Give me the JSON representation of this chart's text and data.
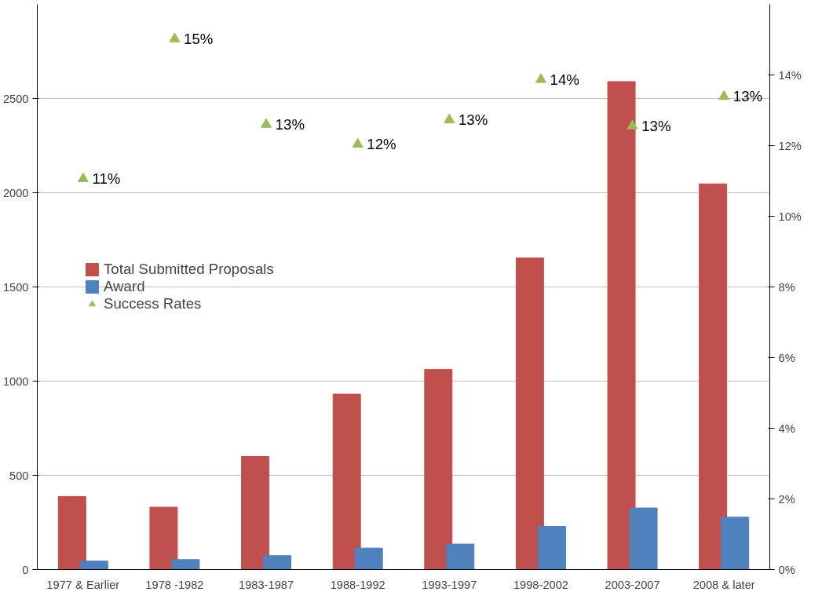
{
  "chart_data": {
    "type": "bar",
    "categories": [
      "1977 & Earlier",
      "1978 -1982",
      "1983-1987",
      "1988-1992",
      "1993-1997",
      "1998-2002",
      "2003-2007",
      "2008 & later"
    ],
    "series": [
      {
        "name": "Total Submitted Proposals",
        "color": "#c0504d",
        "values": [
          388,
          331,
          600,
          931,
          1062,
          1654,
          2590,
          2047
        ]
      },
      {
        "name": "Award",
        "color": "#4f81bd",
        "values": [
          45,
          53,
          74,
          114,
          135,
          229,
          327,
          278
        ]
      },
      {
        "name": "Success Rates",
        "type": "scatter",
        "axis": "y2",
        "marker": "triangle",
        "color": "#9bbb59",
        "values": [
          11.06,
          15.02,
          12.6,
          12.04,
          12.73,
          13.87,
          12.56,
          13.39
        ],
        "value_labels": [
          "11%",
          "15%",
          "13%",
          "12%",
          "13%",
          "14%",
          "13%",
          "13%"
        ]
      }
    ],
    "ylim": [
      0,
      3000
    ],
    "yticks": [
      0,
      500,
      1000,
      1500,
      2000,
      2500
    ],
    "y2lim": [
      0,
      16
    ],
    "y2ticks": [
      {
        "value": 0,
        "label": "0%"
      },
      {
        "value": 2,
        "label": "2%"
      },
      {
        "value": 4,
        "label": "4%"
      },
      {
        "value": 6,
        "label": "6%"
      },
      {
        "value": 8,
        "label": "8%"
      },
      {
        "value": 10,
        "label": "10%"
      },
      {
        "value": 12,
        "label": "12%"
      },
      {
        "value": 14,
        "label": "14%"
      }
    ],
    "grid": "y",
    "legend": "left"
  }
}
